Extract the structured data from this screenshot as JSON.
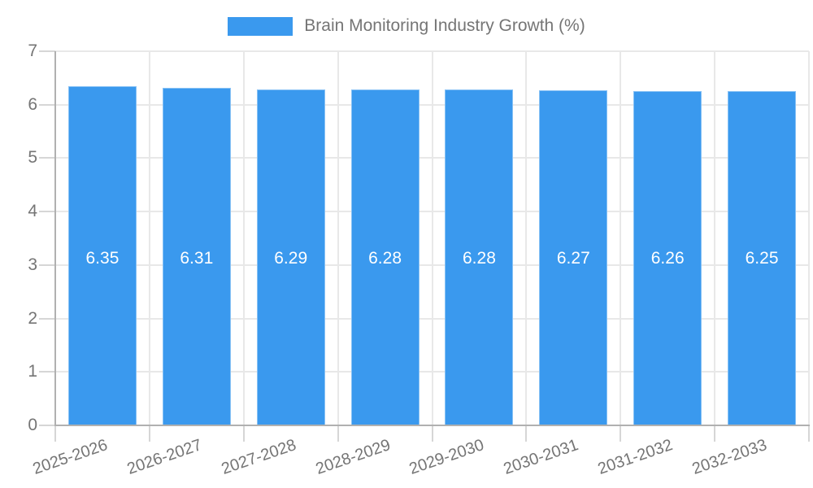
{
  "legend": {
    "label": "Brain Monitoring Industry Growth (%)"
  },
  "chart_data": {
    "type": "bar",
    "title": "Brain Monitoring Industry Growth (%)",
    "categories": [
      "2025-2026",
      "2026-2027",
      "2027-2028",
      "2028-2029",
      "2029-2030",
      "2030-2031",
      "2031-2032",
      "2032-2033"
    ],
    "series": [
      {
        "name": "Brain Monitoring Industry Growth (%)",
        "values": [
          6.35,
          6.31,
          6.29,
          6.28,
          6.28,
          6.27,
          6.26,
          6.25
        ]
      }
    ],
    "data_labels": [
      "6.35",
      "6.31",
      "6.29",
      "6.28",
      "6.28",
      "6.27",
      "6.26",
      "6.25"
    ],
    "xlabel": "",
    "ylabel": "",
    "ylim": [
      0,
      7
    ],
    "yticks": [
      0,
      1,
      2,
      3,
      4,
      5,
      6,
      7
    ],
    "grid": true,
    "legend_position": "top"
  },
  "colors": {
    "bar": "#3a99ee",
    "gridline": "#e8e8e8",
    "tick_mark": "#d6d6d6",
    "axis_line": "#b0b0b0",
    "tick_label": "#757575",
    "x_label": "#757575",
    "legend_label": "#757575",
    "value_label": "#ffffff",
    "background": "#ffffff"
  }
}
